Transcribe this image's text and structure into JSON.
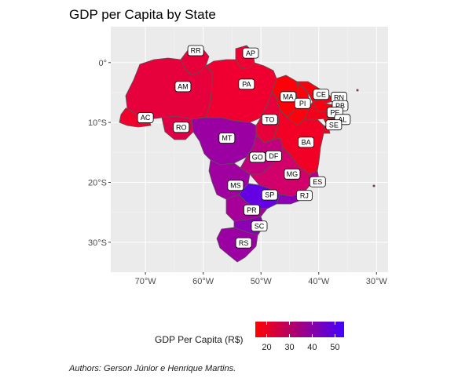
{
  "chart_data": {
    "type": "choropleth-map",
    "title": "GDP per Capita by State",
    "caption": "Authors: Gerson Júnior e Henrique Martins.",
    "x_axis": {
      "ticks": [
        "70°W",
        "60°W",
        "50°W",
        "40°W",
        "30°W"
      ],
      "lon_values": [
        -70,
        -60,
        -50,
        -40,
        -30
      ],
      "range": [
        -76,
        -28
      ]
    },
    "y_axis": {
      "ticks": [
        "0°",
        "10°S",
        "20°S",
        "30°S"
      ],
      "lat_values": [
        0,
        -10,
        -20,
        -30
      ],
      "range": [
        -35,
        6
      ]
    },
    "grid": true,
    "legend": {
      "title": "GDP Per Capita (R$)",
      "position": "bottom",
      "ticks": [
        20,
        30,
        40,
        50
      ],
      "range": [
        15,
        54
      ],
      "color_low": "#ff0000",
      "color_high": "#4400ff"
    },
    "states": [
      {
        "label": "RR",
        "lon": -61.3,
        "lat": 2.0,
        "value": 23
      },
      {
        "label": "AP",
        "lon": -51.8,
        "lat": 1.6,
        "value": 22
      },
      {
        "label": "AM",
        "lon": -63.5,
        "lat": -4.0,
        "value": 22
      },
      {
        "label": "PA",
        "lon": -52.5,
        "lat": -3.6,
        "value": 20
      },
      {
        "label": "MA",
        "lon": -45.3,
        "lat": -5.7,
        "value": 15
      },
      {
        "label": "CE",
        "lon": -39.6,
        "lat": -5.3,
        "value": 16
      },
      {
        "label": "RN",
        "lon": -36.5,
        "lat": -5.8,
        "value": 18
      },
      {
        "label": "PB",
        "lon": -36.3,
        "lat": -7.2,
        "value": 16
      },
      {
        "label": "PI",
        "lon": -42.8,
        "lat": -6.8,
        "value": 15
      },
      {
        "label": "PE",
        "lon": -37.2,
        "lat": -8.3,
        "value": 18
      },
      {
        "label": "AL",
        "lon": -35.9,
        "lat": -9.5,
        "value": 16
      },
      {
        "label": "SE",
        "lon": -37.4,
        "lat": -10.4,
        "value": 19
      },
      {
        "label": "AC",
        "lon": -70.0,
        "lat": -9.2,
        "value": 18
      },
      {
        "label": "RO",
        "lon": -63.8,
        "lat": -10.8,
        "value": 26
      },
      {
        "label": "TO",
        "lon": -48.5,
        "lat": -9.5,
        "value": 22
      },
      {
        "label": "MT",
        "lon": -55.9,
        "lat": -12.6,
        "value": 39
      },
      {
        "label": "BA",
        "lon": -42.2,
        "lat": -13.3,
        "value": 19
      },
      {
        "label": "GO",
        "lon": -50.6,
        "lat": -15.8,
        "value": 31
      },
      {
        "label": "DF",
        "lon": -47.8,
        "lat": -15.6,
        "value": 52
      },
      {
        "label": "MG",
        "lon": -44.6,
        "lat": -18.6,
        "value": 27
      },
      {
        "label": "ES",
        "lon": -40.2,
        "lat": -19.9,
        "value": 33
      },
      {
        "label": "MS",
        "lon": -54.4,
        "lat": -20.5,
        "value": 38
      },
      {
        "label": "SP",
        "lon": -48.5,
        "lat": -22.1,
        "value": 47
      },
      {
        "label": "RJ",
        "lon": -42.5,
        "lat": -22.2,
        "value": 40
      },
      {
        "label": "PR",
        "lon": -51.6,
        "lat": -24.6,
        "value": 36
      },
      {
        "label": "SC",
        "lon": -50.3,
        "lat": -27.3,
        "value": 40
      },
      {
        "label": "RS",
        "lon": -53.0,
        "lat": -30.1,
        "value": 37
      }
    ]
  }
}
